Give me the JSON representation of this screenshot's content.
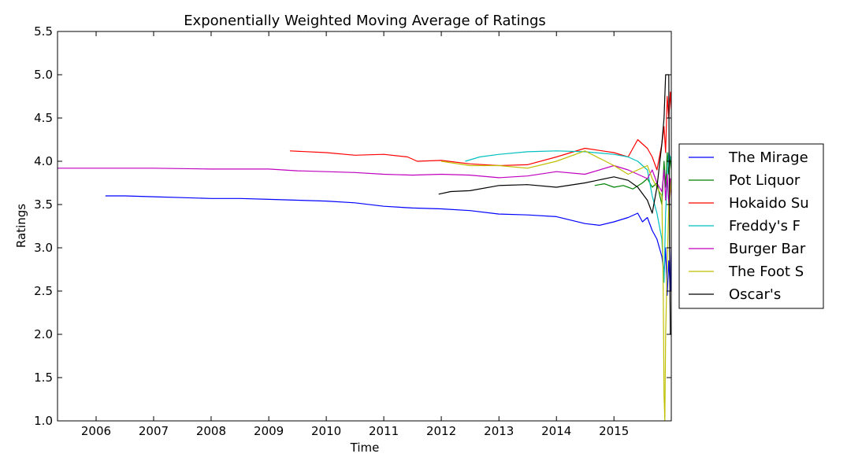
{
  "chart_data": {
    "type": "line",
    "title": "Exponentially Weighted Moving Average of Ratings",
    "xlabel": "Time",
    "ylabel": "Ratings",
    "xlim": [
      "2005-05-01",
      "2015-12-31"
    ],
    "ylim": [
      1.0,
      5.5
    ],
    "x_ticks": [
      "2006",
      "2007",
      "2008",
      "2009",
      "2010",
      "2011",
      "2012",
      "2013",
      "2014",
      "2015"
    ],
    "y_ticks": [
      "1.0",
      "1.5",
      "2.0",
      "2.5",
      "3.0",
      "3.5",
      "4.0",
      "4.5",
      "5.0",
      "5.5"
    ],
    "grid": false,
    "legend_position": "outside-right",
    "series": [
      {
        "name": "The Mirage",
        "color": "#0000ff",
        "points": [
          [
            "2006-03-01",
            3.6
          ],
          [
            "2006-07-01",
            3.6
          ],
          [
            "2007-01-01",
            3.59
          ],
          [
            "2007-07-01",
            3.58
          ],
          [
            "2008-01-01",
            3.57
          ],
          [
            "2008-07-01",
            3.57
          ],
          [
            "2009-01-01",
            3.56
          ],
          [
            "2009-07-01",
            3.55
          ],
          [
            "2010-01-01",
            3.54
          ],
          [
            "2010-07-01",
            3.52
          ],
          [
            "2011-01-01",
            3.48
          ],
          [
            "2011-07-01",
            3.46
          ],
          [
            "2012-01-01",
            3.45
          ],
          [
            "2012-07-01",
            3.43
          ],
          [
            "2013-01-01",
            3.39
          ],
          [
            "2013-07-01",
            3.38
          ],
          [
            "2014-01-01",
            3.36
          ],
          [
            "2014-07-01",
            3.28
          ],
          [
            "2014-10-01",
            3.26
          ],
          [
            "2015-01-01",
            3.3
          ],
          [
            "2015-04-01",
            3.35
          ],
          [
            "2015-06-01",
            3.4
          ],
          [
            "2015-07-01",
            3.3
          ],
          [
            "2015-08-01",
            3.35
          ],
          [
            "2015-09-01",
            3.2
          ],
          [
            "2015-10-01",
            3.1
          ],
          [
            "2015-11-01",
            2.9
          ],
          [
            "2015-11-15",
            2.7
          ],
          [
            "2015-11-25",
            3.0
          ],
          [
            "2015-12-05",
            2.45
          ],
          [
            "2015-12-15",
            2.85
          ],
          [
            "2015-12-25",
            2.5
          ],
          [
            "2015-12-31",
            3.0
          ]
        ]
      },
      {
        "name": "Pot Liquor",
        "color": "#008000",
        "points": [
          [
            "2014-09-01",
            3.72
          ],
          [
            "2014-11-01",
            3.74
          ],
          [
            "2015-01-01",
            3.7
          ],
          [
            "2015-03-01",
            3.72
          ],
          [
            "2015-05-01",
            3.68
          ],
          [
            "2015-07-01",
            3.75
          ],
          [
            "2015-08-01",
            3.8
          ],
          [
            "2015-09-01",
            3.7
          ],
          [
            "2015-10-01",
            3.75
          ],
          [
            "2015-11-01",
            3.5
          ],
          [
            "2015-11-15",
            4.0
          ],
          [
            "2015-11-25",
            3.7
          ],
          [
            "2015-12-05",
            4.1
          ],
          [
            "2015-12-15",
            3.85
          ],
          [
            "2015-12-25",
            4.05
          ],
          [
            "2015-12-31",
            3.9
          ]
        ]
      },
      {
        "name": "Hokaido Su",
        "color": "#ff0000",
        "points": [
          [
            "2009-05-15",
            4.12
          ],
          [
            "2010-01-01",
            4.1
          ],
          [
            "2010-07-01",
            4.07
          ],
          [
            "2011-01-01",
            4.08
          ],
          [
            "2011-06-01",
            4.05
          ],
          [
            "2011-08-01",
            4.0
          ],
          [
            "2012-01-01",
            4.01
          ],
          [
            "2012-07-01",
            3.97
          ],
          [
            "2013-01-01",
            3.95
          ],
          [
            "2013-07-01",
            3.96
          ],
          [
            "2014-01-01",
            4.05
          ],
          [
            "2014-07-01",
            4.15
          ],
          [
            "2015-01-01",
            4.1
          ],
          [
            "2015-04-01",
            4.05
          ],
          [
            "2015-06-01",
            4.25
          ],
          [
            "2015-07-01",
            4.2
          ],
          [
            "2015-08-01",
            4.15
          ],
          [
            "2015-09-01",
            4.05
          ],
          [
            "2015-10-01",
            3.9
          ],
          [
            "2015-11-01",
            4.2
          ],
          [
            "2015-11-15",
            4.4
          ],
          [
            "2015-11-25",
            4.1
          ],
          [
            "2015-12-05",
            4.75
          ],
          [
            "2015-12-15",
            4.5
          ],
          [
            "2015-12-25",
            4.8
          ],
          [
            "2015-12-31",
            4.6
          ]
        ]
      },
      {
        "name": "Freddy's F",
        "color": "#00bfbf",
        "points": [
          [
            "2012-06-01",
            4.0
          ],
          [
            "2012-09-01",
            4.05
          ],
          [
            "2013-01-01",
            4.08
          ],
          [
            "2013-07-01",
            4.11
          ],
          [
            "2014-01-01",
            4.12
          ],
          [
            "2014-07-01",
            4.11
          ],
          [
            "2015-01-01",
            4.08
          ],
          [
            "2015-04-01",
            4.05
          ],
          [
            "2015-06-01",
            4.0
          ],
          [
            "2015-08-01",
            3.9
          ],
          [
            "2015-09-01",
            3.6
          ],
          [
            "2015-10-01",
            3.4
          ],
          [
            "2015-11-01",
            3.1
          ],
          [
            "2015-11-15",
            2.6
          ],
          [
            "2015-11-25",
            3.4
          ],
          [
            "2015-12-05",
            3.8
          ],
          [
            "2015-12-15",
            4.1
          ],
          [
            "2015-12-31",
            4.0
          ]
        ]
      },
      {
        "name": "Burger Bar",
        "color": "#bf00bf",
        "points": [
          [
            "2005-05-01",
            3.92
          ],
          [
            "2006-01-01",
            3.92
          ],
          [
            "2007-01-01",
            3.92
          ],
          [
            "2008-01-01",
            3.91
          ],
          [
            "2009-01-01",
            3.91
          ],
          [
            "2009-07-01",
            3.89
          ],
          [
            "2010-01-01",
            3.88
          ],
          [
            "2010-07-01",
            3.87
          ],
          [
            "2011-01-01",
            3.85
          ],
          [
            "2011-07-01",
            3.84
          ],
          [
            "2012-01-01",
            3.85
          ],
          [
            "2012-07-01",
            3.84
          ],
          [
            "2013-01-01",
            3.81
          ],
          [
            "2013-07-01",
            3.83
          ],
          [
            "2014-01-01",
            3.88
          ],
          [
            "2014-07-01",
            3.85
          ],
          [
            "2015-01-01",
            3.95
          ],
          [
            "2015-04-01",
            3.9
          ],
          [
            "2015-06-01",
            3.85
          ],
          [
            "2015-08-01",
            3.8
          ],
          [
            "2015-09-01",
            3.9
          ],
          [
            "2015-10-01",
            3.75
          ],
          [
            "2015-11-01",
            3.65
          ],
          [
            "2015-11-15",
            3.9
          ],
          [
            "2015-11-25",
            3.55
          ],
          [
            "2015-12-05",
            3.85
          ],
          [
            "2015-12-15",
            3.5
          ],
          [
            "2015-12-25",
            3.8
          ],
          [
            "2015-12-31",
            3.6
          ]
        ]
      },
      {
        "name": "The Foot S",
        "color": "#bfbf00",
        "points": [
          [
            "2012-01-01",
            4.0
          ],
          [
            "2012-07-01",
            3.95
          ],
          [
            "2013-01-01",
            3.95
          ],
          [
            "2013-07-01",
            3.92
          ],
          [
            "2014-01-01",
            4.0
          ],
          [
            "2014-07-01",
            4.12
          ],
          [
            "2015-01-01",
            3.95
          ],
          [
            "2015-04-01",
            3.85
          ],
          [
            "2015-06-01",
            3.9
          ],
          [
            "2015-08-01",
            3.95
          ],
          [
            "2015-09-01",
            3.8
          ],
          [
            "2015-10-01",
            3.7
          ],
          [
            "2015-11-01",
            3.6
          ],
          [
            "2015-11-10",
            2.5
          ],
          [
            "2015-11-15",
            1.3
          ],
          [
            "2015-11-20",
            1.0
          ],
          [
            "2015-11-25",
            2.0
          ],
          [
            "2015-12-05",
            2.8
          ],
          [
            "2015-12-15",
            3.5
          ],
          [
            "2015-12-31",
            3.8
          ]
        ]
      },
      {
        "name": "Oscar's",
        "color": "#000000",
        "points": [
          [
            "2011-12-15",
            3.62
          ],
          [
            "2012-03-01",
            3.65
          ],
          [
            "2012-07-01",
            3.66
          ],
          [
            "2013-01-01",
            3.72
          ],
          [
            "2013-07-01",
            3.73
          ],
          [
            "2014-01-01",
            3.7
          ],
          [
            "2014-07-01",
            3.75
          ],
          [
            "2015-01-01",
            3.82
          ],
          [
            "2015-04-01",
            3.78
          ],
          [
            "2015-06-01",
            3.7
          ],
          [
            "2015-08-01",
            3.55
          ],
          [
            "2015-09-01",
            3.4
          ],
          [
            "2015-10-01",
            3.7
          ],
          [
            "2015-11-01",
            4.2
          ],
          [
            "2015-11-15",
            4.5
          ],
          [
            "2015-11-25",
            5.0
          ],
          [
            "2015-12-05",
            5.0
          ],
          [
            "2015-12-15",
            5.0
          ],
          [
            "2015-12-20",
            3.0
          ],
          [
            "2015-12-25",
            2.0
          ],
          [
            "2015-12-31",
            2.0
          ]
        ]
      }
    ]
  }
}
